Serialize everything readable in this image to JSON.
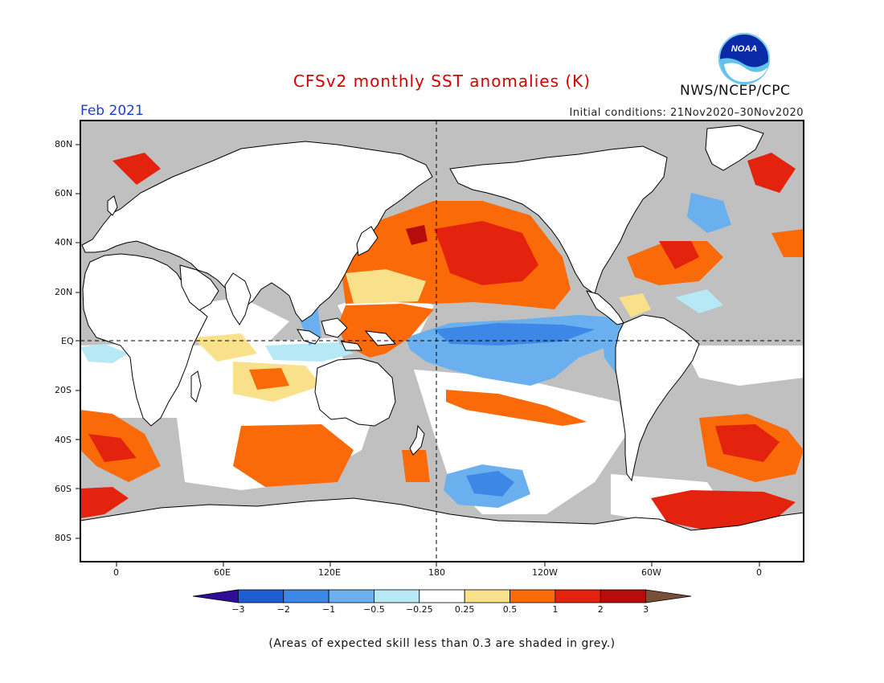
{
  "title": "CFSv2 monthly SST anomalies (K)",
  "period": "Feb 2021",
  "initial_conditions": "Initial conditions: 21Nov2020–30Nov2020",
  "agency": "NWS/NCEP/CPC",
  "logo_text": "NOAA",
  "note": "(Areas of expected skill less than 0.3 are shaded in grey.)",
  "map": {
    "lat_labels": [
      "80N",
      "60N",
      "40N",
      "20N",
      "EQ",
      "20S",
      "40S",
      "60S",
      "80S"
    ],
    "lon_labels": [
      "0",
      "60E",
      "120E",
      "180",
      "120W",
      "60W",
      "0"
    ],
    "colors": {
      "land": "#ffffff",
      "nonskill": "#c0c0c0",
      "coast": "#000000"
    }
  },
  "colorbar": {
    "tick_labels": [
      "−3",
      "−2",
      "−1",
      "−0.5",
      "−0.25",
      "0.25",
      "0.5",
      "1",
      "2",
      "3"
    ],
    "colors": [
      "#2e0e99",
      "#1e5ed2",
      "#3d87e6",
      "#6aafee",
      "#b6e9f5",
      "#ffffff",
      "#f9e08a",
      "#fb6a08",
      "#e4230e",
      "#b60c0c",
      "#7a4f3a"
    ]
  },
  "chart_data": {
    "type": "heatmap",
    "title": "CFSv2 monthly SST anomalies (K)",
    "valid_month": "Feb 2021",
    "initial_conditions": "21Nov2020–30Nov2020",
    "units": "K",
    "contour_levels": [
      -3,
      -2,
      -1,
      -0.5,
      -0.25,
      0.25,
      0.5,
      1,
      2,
      3
    ],
    "anomaly_regions": [
      {
        "region": "equatorial central-eastern Pacific",
        "anomaly_range": [
          -1,
          -0.5
        ]
      },
      {
        "region": "North Pacific",
        "anomaly_range": [
          1,
          2
        ]
      },
      {
        "region": "western tropical Pacific",
        "anomaly_range": [
          0.5,
          1
        ]
      },
      {
        "region": "South Pacific (30S-40S)",
        "anomaly_range": [
          0.5,
          1
        ]
      },
      {
        "region": "South Pacific (55S-60S)",
        "anomaly_range": [
          -2,
          -1
        ]
      },
      {
        "region": "South Atlantic (40S-50S)",
        "anomaly_range": [
          1,
          2
        ]
      },
      {
        "region": "North Atlantic (Gulf Stream)",
        "anomaly_range": [
          1,
          2
        ]
      }
    ]
  }
}
